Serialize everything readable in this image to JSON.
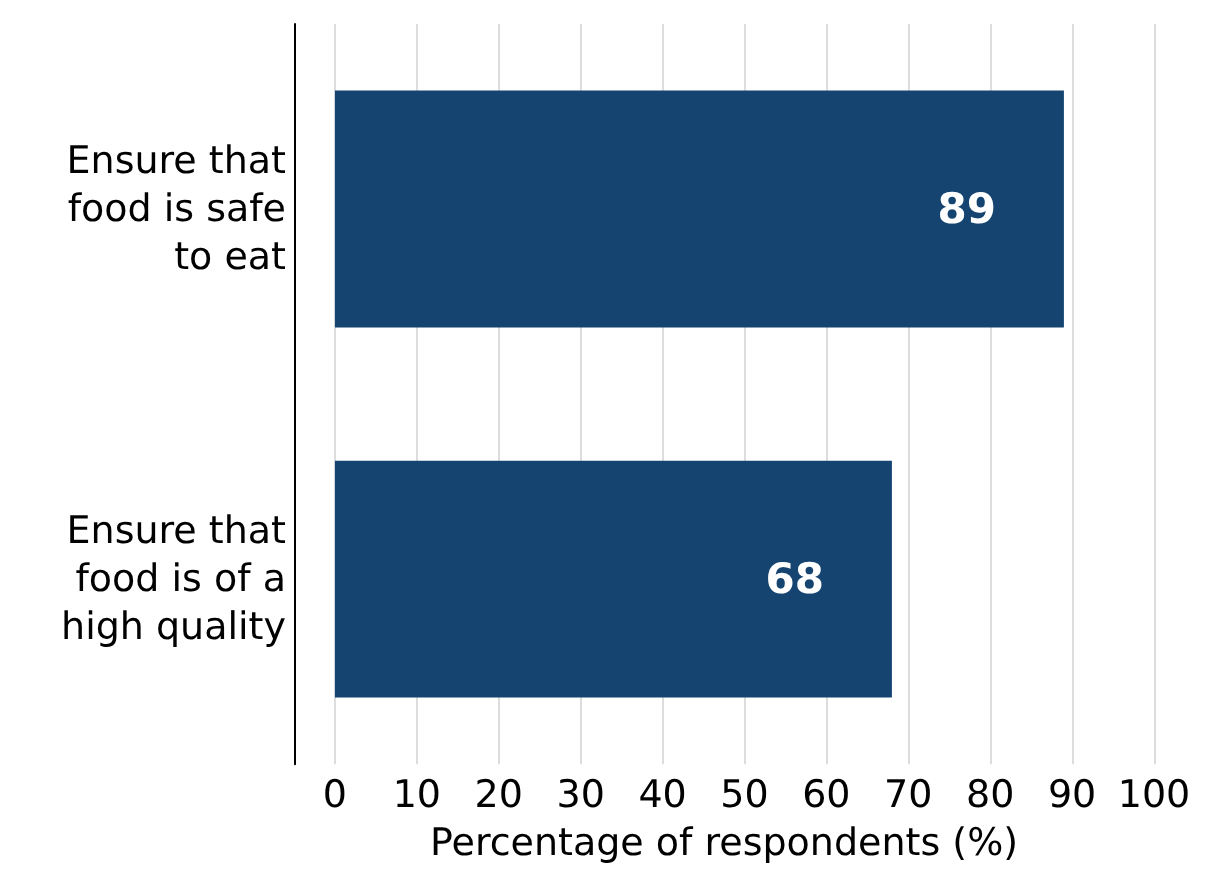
{
  "chart_data": {
    "type": "bar",
    "orientation": "horizontal",
    "categories": [
      "Ensure that\nfood is safe\nto eat",
      "Ensure that\nfood is of a\nhigh quality"
    ],
    "values": [
      89,
      68
    ],
    "color": "#154470",
    "data_labels": true,
    "xlabel": "Percentage of respondents (%)",
    "xlim": [
      -5,
      100
    ],
    "xticks": [
      0,
      10,
      20,
      30,
      40,
      50,
      60,
      70,
      80,
      90,
      100
    ],
    "grid": "x"
  }
}
